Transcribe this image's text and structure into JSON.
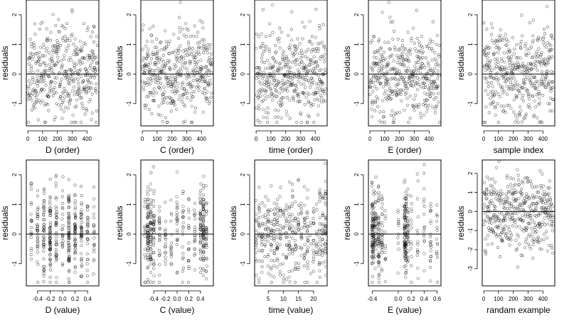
{
  "figure": {
    "background": "#ffffff",
    "point_color": "#000000",
    "line_color": "#000000"
  },
  "chart_data": [
    {
      "type": "scatter",
      "xlabel": "D (order)",
      "ylabel": "residuals",
      "xlim": [
        -10,
        480
      ],
      "ylim": [
        -1.75,
        2.5
      ],
      "xticks": [
        0,
        100,
        200,
        300,
        400
      ],
      "xtick_labels": [
        "0",
        "100",
        "200",
        "300",
        "400"
      ],
      "yticks": [
        -1,
        0,
        1,
        2
      ],
      "ytick_labels": [
        "-1",
        "0",
        "1",
        "2"
      ],
      "zero_line": 0,
      "n_points": 420,
      "distribution": "order",
      "x_range": [
        0,
        470
      ],
      "seed": 11
    },
    {
      "type": "scatter",
      "xlabel": "C (order)",
      "ylabel": "residuals",
      "xlim": [
        -10,
        480
      ],
      "ylim": [
        -1.75,
        2.5
      ],
      "xticks": [
        0,
        100,
        200,
        300,
        400
      ],
      "xtick_labels": [
        "0",
        "100",
        "200",
        "300",
        "400"
      ],
      "yticks": [
        -1,
        0,
        1,
        2
      ],
      "ytick_labels": [
        "-1",
        "0",
        "1",
        "2"
      ],
      "zero_line": 0,
      "n_points": 420,
      "distribution": "order",
      "x_range": [
        0,
        470
      ],
      "seed": 23
    },
    {
      "type": "scatter",
      "xlabel": "time (order)",
      "ylabel": "residuals",
      "xlim": [
        -10,
        480
      ],
      "ylim": [
        -1.75,
        2.5
      ],
      "xticks": [
        0,
        100,
        200,
        300,
        400
      ],
      "xtick_labels": [
        "0",
        "100",
        "200",
        "300",
        "400"
      ],
      "yticks": [
        -1,
        0,
        1,
        2
      ],
      "ytick_labels": [
        "-1",
        "0",
        "1",
        "2"
      ],
      "zero_line": 0,
      "n_points": 420,
      "distribution": "order",
      "x_range": [
        0,
        470
      ],
      "seed": 37
    },
    {
      "type": "scatter",
      "xlabel": "E (order)",
      "ylabel": "residuals",
      "xlim": [
        -10,
        480
      ],
      "ylim": [
        -1.75,
        2.5
      ],
      "xticks": [
        0,
        100,
        200,
        300,
        400
      ],
      "xtick_labels": [
        "0",
        "100",
        "200",
        "300",
        "400"
      ],
      "yticks": [
        -1,
        0,
        1,
        2
      ],
      "ytick_labels": [
        "-1",
        "0",
        "1",
        "2"
      ],
      "zero_line": 0,
      "n_points": 420,
      "distribution": "order",
      "x_range": [
        0,
        470
      ],
      "seed": 41
    },
    {
      "type": "scatter",
      "xlabel": "sample index",
      "ylabel": "residuals",
      "xlim": [
        -10,
        480
      ],
      "ylim": [
        -1.75,
        2.5
      ],
      "xticks": [
        0,
        100,
        200,
        300,
        400
      ],
      "xtick_labels": [
        "0",
        "100",
        "200",
        "300",
        "400"
      ],
      "yticks": [
        -1,
        0,
        1,
        2
      ],
      "ytick_labels": [
        "-1",
        "0",
        "1",
        "2"
      ],
      "zero_line": 0,
      "n_points": 420,
      "distribution": "order",
      "x_range": [
        0,
        470
      ],
      "seed": 53
    },
    {
      "type": "scatter",
      "xlabel": "D (value)",
      "ylabel": "residuals",
      "xlim": [
        -0.58,
        0.58
      ],
      "ylim": [
        -1.75,
        2.5
      ],
      "xticks": [
        -0.4,
        -0.2,
        0.0,
        0.2,
        0.4
      ],
      "xtick_labels": [
        "-0.4",
        "-0.2",
        "0.0",
        "0.2",
        "0.4"
      ],
      "yticks": [
        -1,
        0,
        1,
        2
      ],
      "ytick_labels": [
        "-1",
        "0",
        "1",
        "2"
      ],
      "zero_line": 0,
      "n_points": 420,
      "distribution": "discrete",
      "x_levels": [
        -0.5,
        -0.4,
        -0.3,
        -0.2,
        -0.1,
        0.0,
        0.1,
        0.2,
        0.3,
        0.4,
        0.5
      ],
      "level_weights": [
        1,
        2,
        2,
        3,
        2,
        1,
        3,
        2,
        2,
        1,
        1
      ],
      "seed": 61
    },
    {
      "type": "scatter",
      "xlabel": "C (value)",
      "ylabel": "residuals",
      "xlim": [
        -0.62,
        0.62
      ],
      "ylim": [
        -1.75,
        2.5
      ],
      "xticks": [
        -0.4,
        -0.2,
        0.0,
        0.2,
        0.4
      ],
      "xtick_labels": [
        "-0.4",
        "-0.2",
        "0.0",
        "0.2",
        "0.4"
      ],
      "yticks": [
        -1,
        0,
        1,
        2
      ],
      "ytick_labels": [
        "-1",
        "0",
        "1",
        "2"
      ],
      "zero_line": 0,
      "n_points": 420,
      "distribution": "discrete",
      "x_levels": [
        -0.55,
        -0.5,
        -0.45,
        -0.4,
        -0.3,
        -0.2,
        -0.1,
        0.0,
        0.1,
        0.2,
        0.3,
        0.4,
        0.45,
        0.5
      ],
      "level_weights": [
        1,
        3,
        2,
        2,
        1,
        1,
        1,
        1,
        1,
        1,
        1,
        2,
        3,
        2
      ],
      "seed": 73
    },
    {
      "type": "scatter",
      "xlabel": "time (value)",
      "ylabel": "residuals",
      "xlim": [
        0.5,
        24.5
      ],
      "ylim": [
        -1.75,
        2.5
      ],
      "xticks": [
        5,
        10,
        15,
        20
      ],
      "xtick_labels": [
        "5",
        "10",
        "15",
        "20"
      ],
      "yticks": [
        -1,
        0,
        1,
        2
      ],
      "ytick_labels": [
        "-1",
        "0",
        "1",
        "2"
      ],
      "zero_line": 0,
      "n_points": 420,
      "distribution": "discrete",
      "x_levels": [
        1,
        2,
        3,
        4,
        5,
        6,
        7,
        8,
        9,
        10,
        11,
        12,
        13,
        14,
        15,
        16,
        17,
        18,
        19,
        20,
        21,
        22,
        23,
        24
      ],
      "level_weights": [
        1,
        1,
        1,
        1,
        1,
        1,
        1,
        1,
        1,
        1,
        1,
        2,
        1,
        1,
        1,
        1,
        1,
        1,
        1,
        1,
        1,
        1,
        1,
        2
      ],
      "seed": 89
    },
    {
      "type": "scatter",
      "xlabel": "E (value)",
      "ylabel": "residuals",
      "xlim": [
        -0.46,
        0.66
      ],
      "ylim": [
        -1.75,
        2.5
      ],
      "xticks": [
        -0.4,
        0.0,
        0.2,
        0.4,
        0.6
      ],
      "xtick_labels": [
        "-0.4",
        "0.0",
        "0.2",
        "0.4",
        "0.6"
      ],
      "yticks": [
        -1,
        0,
        1,
        2
      ],
      "ytick_labels": [
        "-1",
        "0",
        "1",
        "2"
      ],
      "zero_line": 0,
      "n_points": 420,
      "distribution": "discrete",
      "x_levels": [
        -0.4,
        -0.38,
        -0.35,
        -0.3,
        -0.25,
        -0.2,
        0.0,
        0.1,
        0.12,
        0.15,
        0.2,
        0.3,
        0.4,
        0.5,
        0.6
      ],
      "level_weights": [
        3,
        2,
        2,
        2,
        1,
        1,
        1,
        3,
        3,
        2,
        1,
        1,
        1,
        1,
        1
      ],
      "seed": 97
    },
    {
      "type": "scatter",
      "xlabel": "randam example",
      "ylabel": "residuals",
      "xlim": [
        -10,
        480
      ],
      "ylim": [
        -3.9,
        2.7
      ],
      "xticks": [
        0,
        100,
        200,
        300,
        400
      ],
      "xtick_labels": [
        "0",
        "100",
        "200",
        "300",
        "400"
      ],
      "yticks": [
        -3,
        -2,
        -1,
        0,
        1,
        2
      ],
      "ytick_labels": [
        "-3",
        "-2",
        "-1",
        "0",
        "1",
        "2"
      ],
      "zero_line": 0,
      "n_points": 420,
      "distribution": "order_wide",
      "x_range": [
        0,
        470
      ],
      "seed": 101
    }
  ]
}
